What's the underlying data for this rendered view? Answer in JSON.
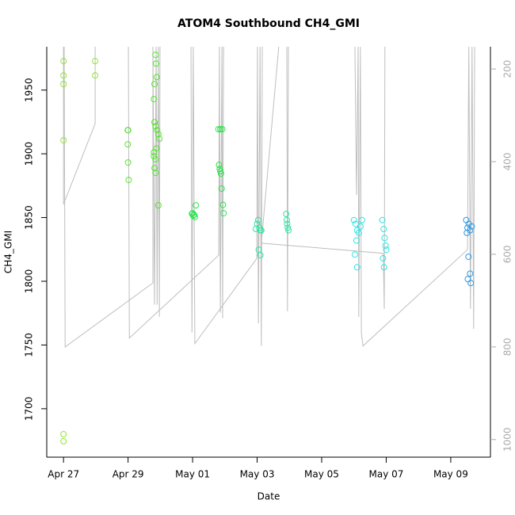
{
  "chart_data": {
    "type": "scatter",
    "title": "ATOM4 Southbound CH4_GMI",
    "x_label": "Date",
    "y_label": "CH4_GMI",
    "xlim": [
      -0.52,
      13.23
    ],
    "xticks": [
      {
        "value": 0,
        "label": "Apr 27"
      },
      {
        "value": 2,
        "label": "Apr 29"
      },
      {
        "value": 4,
        "label": "May 01"
      },
      {
        "value": 6,
        "label": "May 03"
      },
      {
        "value": 8,
        "label": "May 05"
      },
      {
        "value": 10,
        "label": "May 07"
      },
      {
        "value": 12,
        "label": "May 09"
      }
    ],
    "ylim": [
      1662,
      1984
    ],
    "yticks": [
      1700,
      1750,
      1800,
      1850,
      1900,
      1950
    ],
    "y2lim": [
      1038,
      152
    ],
    "y2ticks": [
      200,
      400,
      600,
      800,
      1000
    ],
    "series": [
      {
        "color": "#8fe632",
        "x": [
          0,
          0,
          0,
          0,
          0,
          0,
          0.98,
          0.98
        ],
        "values": [
          1972.7,
          1961.5,
          1954.7,
          1910.6,
          1680,
          1674.5,
          1972.7,
          1961.5
        ]
      },
      {
        "color": "#55e52e",
        "x": [
          1.99,
          2.0,
          1.99,
          2.0,
          2.02,
          2.85,
          2.87,
          2.89,
          2.82,
          2.8,
          2.82,
          2.85,
          2.9,
          2.94,
          2.97,
          2.88,
          2.8,
          2.8,
          2.85,
          2.82,
          2.85,
          2.94
        ],
        "values": [
          1918.6,
          1918.6,
          1907.5,
          1893.2,
          1879.5,
          1977.6,
          1970.8,
          1960.2,
          1954.7,
          1942.9,
          1924.8,
          1921.7,
          1918.6,
          1915.5,
          1911.8,
          1904.3,
          1901.2,
          1898.1,
          1895.7,
          1888.8,
          1885.1,
          1859.6
        ]
      },
      {
        "color": "#2be54a",
        "x": [
          4.0,
          4.02,
          4.05,
          3.98,
          4.07,
          4.1,
          4.8,
          4.86,
          4.92,
          4.82,
          4.84,
          4.86,
          4.88,
          4.9,
          4.94,
          4.96
        ],
        "values": [
          1853.4,
          1851.5,
          1852.2,
          1853,
          1850.5,
          1859.6,
          1919.3,
          1919.3,
          1919.3,
          1891.3,
          1888.2,
          1886.3,
          1884.5,
          1872.7,
          1860,
          1853.4
        ]
      },
      {
        "color": "#2ee5a0",
        "x": [
          5.96,
          6.0,
          6.03,
          6.07,
          6.1,
          6.05,
          6.1,
          6.13,
          6.9,
          6.93,
          6.95,
          6.97,
          6.92
        ],
        "values": [
          1841,
          1845,
          1848,
          1842,
          1840,
          1824.8,
          1820.5,
          1840,
          1852.8,
          1845,
          1842,
          1840,
          1848
        ]
      },
      {
        "color": "#2ee5e5",
        "x": [
          9.0,
          9.05,
          9.1,
          9.15,
          9.2,
          9.25,
          9.03,
          9.1,
          9.08,
          9.88,
          9.92,
          9.95,
          9.98,
          9.9,
          9.93,
          10.0
        ],
        "values": [
          1848,
          1845,
          1840,
          1838,
          1843,
          1848,
          1821,
          1811,
          1832,
          1848,
          1841,
          1834,
          1828,
          1818,
          1811,
          1824.8
        ]
      },
      {
        "color": "#2e9ae5",
        "x": [
          12.48,
          12.52,
          12.56,
          12.6,
          12.65,
          12.5,
          12.55,
          12.6,
          12.53,
          12.62
        ],
        "values": [
          1848,
          1842,
          1845,
          1840,
          1843,
          1838,
          1819.3,
          1806,
          1801.7,
          1798.6
        ]
      },
      {
        "type": "line",
        "axis": "y2",
        "color": "#bebebe",
        "x": [
          0,
          0,
          0.98,
          0.98,
          null,
          0.02,
          0.05,
          2.77,
          2.77,
          2.82,
          2.87,
          2.9,
          2.94,
          2.97,
          2.99,
          null,
          2.01,
          2.04,
          4.81,
          4.83,
          4.86,
          4.91,
          4.93,
          4.96,
          null,
          3.95,
          3.98,
          4.02,
          4.07,
          5.99,
          6.01,
          6.04,
          6.09,
          6.13,
          6.16,
          null,
          6.67,
          6.13,
          9.91,
          9.94,
          9.96,
          null,
          6.92,
          6.94,
          6.97,
          null,
          9.03,
          9.08,
          9.13,
          9.15,
          9.2,
          9.23,
          9.28,
          12.52,
          12.56,
          12.61,
          12.66,
          12.71,
          12.74
        ],
        "values": [
          152,
          492,
          318,
          152,
          null,
          152,
          800,
          662,
          152,
          709,
          152,
          709,
          152,
          735,
          152,
          null,
          152,
          781,
          602,
          152,
          726,
          152,
          738,
          152,
          null,
          152,
          769,
          152,
          793,
          609,
          152,
          749,
          152,
          798,
          152,
          null,
          152,
          576,
          598,
          718,
          152,
          null,
          152,
          723,
          152,
          null,
          152,
          472,
          152,
          735,
          152,
          769,
          798,
          590,
          152,
          718,
          152,
          761,
          152
        ]
      }
    ]
  }
}
